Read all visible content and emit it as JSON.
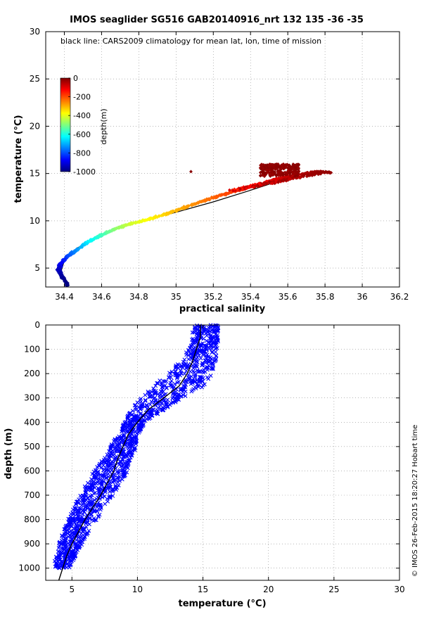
{
  "title": "IMOS seaglider SG516 GAB20140916_nrt 132  135  -36  -35",
  "credit": "© IMOS 26-Feb-2015 18:20:27 Hobart time",
  "chart_data": [
    {
      "type": "scatter",
      "note": "black line: CARS2009 climatology for mean lat, lon, time of mission",
      "xlabel": "practical salinity",
      "ylabel": "temperature (°C)",
      "xlim": [
        34.3,
        36.2
      ],
      "ylim": [
        3,
        30
      ],
      "xticks": [
        34.4,
        34.6,
        34.8,
        35,
        35.2,
        35.4,
        35.6,
        35.8,
        36,
        36.2
      ],
      "xtick_labels": [
        "34.4",
        "34.6",
        "34.8",
        "35",
        "35.2",
        "35.4",
        "35.6",
        "35.8",
        "36",
        "36.2"
      ],
      "yticks": [
        5,
        10,
        15,
        20,
        25,
        30
      ],
      "ytick_labels": [
        "5",
        "10",
        "15",
        "20",
        "25",
        "30"
      ],
      "grid": true,
      "colorbar": {
        "label": "depth(m)",
        "range": [
          -1000,
          0
        ],
        "ticks": [
          0,
          -200,
          -400,
          -600,
          -800,
          -1000
        ],
        "tick_labels": [
          "0",
          "-200",
          "-400",
          "-600",
          "-800",
          "-1000"
        ],
        "colors": [
          "#00007f",
          "#0000ff",
          "#007fff",
          "#00ffff",
          "#7fff7f",
          "#ffff00",
          "#ff7f00",
          "#ff0000",
          "#7f0000"
        ]
      },
      "series": [
        {
          "depth_profile": [
            {
              "s": 34.42,
              "t": 3.2,
              "depth": -1000
            },
            {
              "s": 34.39,
              "t": 4.0,
              "depth": -980
            },
            {
              "s": 34.37,
              "t": 4.8,
              "depth": -940
            },
            {
              "s": 34.38,
              "t": 5.5,
              "depth": -880
            },
            {
              "s": 34.42,
              "t": 6.3,
              "depth": -800
            },
            {
              "s": 34.47,
              "t": 7.0,
              "depth": -720
            },
            {
              "s": 34.53,
              "t": 7.8,
              "depth": -640
            },
            {
              "s": 34.6,
              "t": 8.5,
              "depth": -560
            },
            {
              "s": 34.68,
              "t": 9.2,
              "depth": -480
            },
            {
              "s": 34.76,
              "t": 9.7,
              "depth": -420
            },
            {
              "s": 34.86,
              "t": 10.2,
              "depth": -370
            },
            {
              "s": 34.96,
              "t": 10.8,
              "depth": -320
            },
            {
              "s": 35.06,
              "t": 11.5,
              "depth": -280
            },
            {
              "s": 35.16,
              "t": 12.2,
              "depth": -240
            },
            {
              "s": 35.26,
              "t": 12.8,
              "depth": -200
            },
            {
              "s": 35.36,
              "t": 13.4,
              "depth": -160
            },
            {
              "s": 35.46,
              "t": 14.0,
              "depth": -120
            },
            {
              "s": 35.56,
              "t": 14.5,
              "depth": -80
            },
            {
              "s": 35.66,
              "t": 14.9,
              "depth": -50
            },
            {
              "s": 35.76,
              "t": 15.2,
              "depth": -30
            },
            {
              "s": 35.83,
              "t": 15.1,
              "depth": -20
            }
          ],
          "surface_cluster": {
            "s_range": [
              35.45,
              35.66
            ],
            "t_range": [
              14.7,
              16.0
            ],
            "depth": -5
          },
          "outlier": {
            "s": 35.08,
            "t": 15.2,
            "depth": -10
          }
        }
      ],
      "climatology": [
        [
          34.42,
          3.3
        ],
        [
          34.38,
          4.5
        ],
        [
          34.4,
          5.8
        ],
        [
          34.46,
          7.0
        ],
        [
          34.55,
          8.1
        ],
        [
          34.66,
          9.0
        ],
        [
          34.82,
          10.0
        ],
        [
          35.0,
          10.9
        ],
        [
          35.2,
          12.0
        ],
        [
          35.38,
          13.1
        ],
        [
          35.52,
          14.0
        ],
        [
          35.6,
          14.6
        ],
        [
          35.64,
          15.0
        ]
      ]
    },
    {
      "type": "scatter",
      "xlabel": "temperature (°C)",
      "ylabel": "depth (m)",
      "xlim": [
        3,
        30
      ],
      "ylim": [
        1050,
        0
      ],
      "xticks": [
        5,
        10,
        15,
        20,
        25,
        30
      ],
      "xtick_labels": [
        "5",
        "10",
        "15",
        "20",
        "25",
        "30"
      ],
      "yticks": [
        0,
        100,
        200,
        300,
        400,
        500,
        600,
        700,
        800,
        900,
        1000
      ],
      "ytick_labels": [
        "0",
        "100",
        "200",
        "300",
        "400",
        "500",
        "600",
        "700",
        "800",
        "900",
        "1000"
      ],
      "grid": true,
      "point_color": "#0000ff",
      "series": [
        {
          "profile_center": [
            [
              15.2,
              0
            ],
            [
              15.2,
              50
            ],
            [
              15.0,
              100
            ],
            [
              14.6,
              150
            ],
            [
              14.0,
              200
            ],
            [
              13.2,
              250
            ],
            [
              11.8,
              300
            ],
            [
              10.8,
              350
            ],
            [
              9.8,
              400
            ],
            [
              9.3,
              450
            ],
            [
              8.9,
              500
            ],
            [
              8.5,
              550
            ],
            [
              8.0,
              600
            ],
            [
              7.4,
              650
            ],
            [
              6.9,
              700
            ],
            [
              6.3,
              750
            ],
            [
              5.8,
              800
            ],
            [
              5.3,
              850
            ],
            [
              4.9,
              900
            ],
            [
              4.5,
              950
            ],
            [
              4.2,
              1000
            ]
          ],
          "profile_spread": [
            [
              1.0,
              0
            ],
            [
              1.0,
              50
            ],
            [
              1.1,
              100
            ],
            [
              1.4,
              150
            ],
            [
              1.7,
              200
            ],
            [
              2.0,
              250
            ],
            [
              1.6,
              300
            ],
            [
              1.3,
              350
            ],
            [
              0.8,
              400
            ],
            [
              0.8,
              450
            ],
            [
              1.0,
              500
            ],
            [
              1.1,
              550
            ],
            [
              1.3,
              600
            ],
            [
              1.3,
              650
            ],
            [
              1.3,
              700
            ],
            [
              1.2,
              750
            ],
            [
              1.1,
              800
            ],
            [
              1.0,
              850
            ],
            [
              0.9,
              900
            ],
            [
              0.8,
              950
            ],
            [
              0.6,
              1000
            ]
          ]
        }
      ],
      "climatology": [
        [
          14.8,
          0
        ],
        [
          14.8,
          50
        ],
        [
          14.5,
          100
        ],
        [
          14.2,
          150
        ],
        [
          13.8,
          200
        ],
        [
          13.2,
          250
        ],
        [
          12.0,
          300
        ],
        [
          10.8,
          350
        ],
        [
          10.0,
          400
        ],
        [
          9.3,
          450
        ],
        [
          8.9,
          500
        ],
        [
          8.5,
          550
        ],
        [
          8.2,
          600
        ],
        [
          7.7,
          650
        ],
        [
          7.2,
          700
        ],
        [
          6.6,
          750
        ],
        [
          6.0,
          800
        ],
        [
          5.5,
          850
        ],
        [
          5.0,
          900
        ],
        [
          4.6,
          950
        ],
        [
          4.3,
          1000
        ],
        [
          4.0,
          1050
        ]
      ]
    }
  ]
}
